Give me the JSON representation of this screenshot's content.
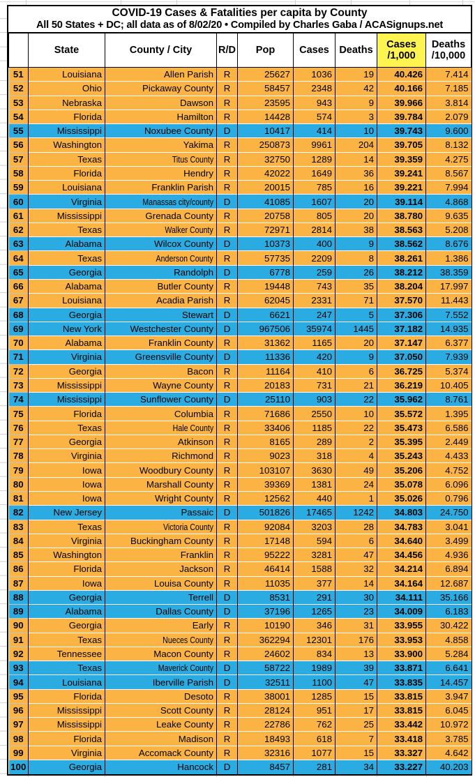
{
  "colors": {
    "republican_row": "#FBB444",
    "democratic_row": "#2AACE2",
    "highlight_header": "#FDF351",
    "grid_black": "#000000",
    "grid_gray": "#CFCFCF"
  },
  "chart_data": {
    "type": "table",
    "title": "COVID-19 Cases & Fatalities per capita by County",
    "subtitle": "All 50 States + DC; all data as of 8/02/20  • Compiled by Charles Gaba / ACASignups.net",
    "row_color_legend": {
      "R": "republican-orange",
      "D": "democratic-blue"
    },
    "columns": [
      {
        "key": "rank",
        "label": ""
      },
      {
        "key": "state",
        "label": "State"
      },
      {
        "key": "county",
        "label": "County / City"
      },
      {
        "key": "party",
        "label": "R/D"
      },
      {
        "key": "pop",
        "label": "Pop"
      },
      {
        "key": "cases",
        "label": "Cases"
      },
      {
        "key": "deaths",
        "label": "Deaths"
      },
      {
        "key": "cases_per_1000",
        "label": "Cases",
        "label2": "/1,000",
        "highlighted": true
      },
      {
        "key": "deaths_per_10000",
        "label": "Deaths",
        "label2": "/10,000"
      }
    ],
    "rows": [
      [
        51,
        "Louisiana",
        "Allen Parish",
        "R",
        25627,
        1036,
        19,
        "40.426",
        "7.414"
      ],
      [
        52,
        "Ohio",
        "Pickaway County",
        "R",
        58457,
        2348,
        42,
        "40.166",
        "7.185"
      ],
      [
        53,
        "Nebraska",
        "Dawson",
        "R",
        23595,
        943,
        9,
        "39.966",
        "3.814"
      ],
      [
        54,
        "Florida",
        "Hamilton",
        "R",
        14428,
        574,
        3,
        "39.784",
        "2.079"
      ],
      [
        55,
        "Mississippi",
        "Noxubee County",
        "D",
        10417,
        414,
        10,
        "39.743",
        "9.600"
      ],
      [
        56,
        "Washington",
        "Yakima",
        "R",
        250873,
        9961,
        204,
        "39.705",
        "8.132"
      ],
      [
        57,
        "Texas",
        "Titus County",
        "R",
        32750,
        1289,
        14,
        "39.359",
        "4.275"
      ],
      [
        58,
        "Florida",
        "Hendry",
        "R",
        42022,
        1649,
        36,
        "39.241",
        "8.567"
      ],
      [
        59,
        "Louisiana",
        "Franklin Parish",
        "R",
        20015,
        785,
        16,
        "39.221",
        "7.994"
      ],
      [
        60,
        "Virginia",
        "Manassas city/county",
        "D",
        41085,
        1607,
        20,
        "39.114",
        "4.868"
      ],
      [
        61,
        "Mississippi",
        "Grenada County",
        "R",
        20758,
        805,
        20,
        "38.780",
        "9.635"
      ],
      [
        62,
        "Texas",
        "Walker County",
        "R",
        72971,
        2814,
        38,
        "38.563",
        "5.208"
      ],
      [
        63,
        "Alabama",
        "Wilcox County",
        "D",
        10373,
        400,
        9,
        "38.562",
        "8.676"
      ],
      [
        64,
        "Texas",
        "Anderson County",
        "R",
        57735,
        2209,
        8,
        "38.261",
        "1.386"
      ],
      [
        65,
        "Georgia",
        "Randolph",
        "D",
        6778,
        259,
        26,
        "38.212",
        "38.359"
      ],
      [
        66,
        "Alabama",
        "Butler County",
        "R",
        19448,
        743,
        35,
        "38.204",
        "17.997"
      ],
      [
        67,
        "Louisiana",
        "Acadia Parish",
        "R",
        62045,
        2331,
        71,
        "37.570",
        "11.443"
      ],
      [
        68,
        "Georgia",
        "Stewart",
        "D",
        6621,
        247,
        5,
        "37.306",
        "7.552"
      ],
      [
        69,
        "New York",
        "Westchester County",
        "D",
        967506,
        35974,
        1445,
        "37.182",
        "14.935"
      ],
      [
        70,
        "Alabama",
        "Franklin County",
        "R",
        31362,
        1165,
        20,
        "37.147",
        "6.377"
      ],
      [
        71,
        "Virginia",
        "Greensville County",
        "D",
        11336,
        420,
        9,
        "37.050",
        "7.939"
      ],
      [
        72,
        "Georgia",
        "Bacon",
        "R",
        11164,
        410,
        6,
        "36.725",
        "5.374"
      ],
      [
        73,
        "Mississippi",
        "Wayne County",
        "R",
        20183,
        731,
        21,
        "36.219",
        "10.405"
      ],
      [
        74,
        "Mississippi",
        "Sunflower County",
        "D",
        25110,
        903,
        22,
        "35.962",
        "8.761"
      ],
      [
        75,
        "Florida",
        "Columbia",
        "R",
        71686,
        2550,
        10,
        "35.572",
        "1.395"
      ],
      [
        76,
        "Texas",
        "Hale County",
        "R",
        33406,
        1185,
        22,
        "35.473",
        "6.586"
      ],
      [
        77,
        "Georgia",
        "Atkinson",
        "R",
        8165,
        289,
        2,
        "35.395",
        "2.449"
      ],
      [
        78,
        "Virginia",
        "Richmond",
        "R",
        9023,
        318,
        4,
        "35.243",
        "4.433"
      ],
      [
        79,
        "Iowa",
        "Woodbury County",
        "R",
        103107,
        3630,
        49,
        "35.206",
        "4.752"
      ],
      [
        80,
        "Iowa",
        "Marshall County",
        "R",
        39369,
        1381,
        24,
        "35.078",
        "6.096"
      ],
      [
        81,
        "Iowa",
        "Wright County",
        "R",
        12562,
        440,
        1,
        "35.026",
        "0.796"
      ],
      [
        82,
        "New Jersey",
        "Passaic",
        "D",
        501826,
        17465,
        1242,
        "34.803",
        "24.750"
      ],
      [
        83,
        "Texas",
        "Victoria County",
        "R",
        92084,
        3203,
        28,
        "34.783",
        "3.041"
      ],
      [
        84,
        "Virginia",
        "Buckingham County",
        "R",
        17148,
        594,
        6,
        "34.640",
        "3.499"
      ],
      [
        85,
        "Washington",
        "Franklin",
        "R",
        95222,
        3281,
        47,
        "34.456",
        "4.936"
      ],
      [
        86,
        "Florida",
        "Jackson",
        "R",
        46414,
        1588,
        32,
        "34.214",
        "6.894"
      ],
      [
        87,
        "Iowa",
        "Louisa County",
        "R",
        11035,
        377,
        14,
        "34.164",
        "12.687"
      ],
      [
        88,
        "Georgia",
        "Terrell",
        "D",
        8531,
        291,
        30,
        "34.111",
        "35.166"
      ],
      [
        89,
        "Alabama",
        "Dallas County",
        "D",
        37196,
        1265,
        23,
        "34.009",
        "6.183"
      ],
      [
        90,
        "Georgia",
        "Early",
        "R",
        10190,
        346,
        31,
        "33.955",
        "30.422"
      ],
      [
        91,
        "Texas",
        "Nueces County",
        "R",
        362294,
        12301,
        176,
        "33.953",
        "4.858"
      ],
      [
        92,
        "Tennessee",
        "Macon County",
        "R",
        24602,
        834,
        13,
        "33.900",
        "5.284"
      ],
      [
        93,
        "Texas",
        "Maverick County",
        "D",
        58722,
        1989,
        39,
        "33.871",
        "6.641"
      ],
      [
        94,
        "Louisiana",
        "Iberville Parish",
        "D",
        32511,
        1100,
        47,
        "33.835",
        "14.457"
      ],
      [
        95,
        "Florida",
        "Desoto",
        "R",
        38001,
        1285,
        15,
        "33.815",
        "3.947"
      ],
      [
        96,
        "Mississippi",
        "Scott County",
        "R",
        28124,
        951,
        17,
        "33.815",
        "6.045"
      ],
      [
        97,
        "Mississippi",
        "Leake County",
        "R",
        22786,
        762,
        25,
        "33.442",
        "10.972"
      ],
      [
        98,
        "Florida",
        "Madison",
        "R",
        18493,
        618,
        7,
        "33.418",
        "3.785"
      ],
      [
        99,
        "Virginia",
        "Accomack County",
        "R",
        32316,
        1077,
        15,
        "33.327",
        "4.642"
      ],
      [
        100,
        "Georgia",
        "Hancock",
        "D",
        8457,
        281,
        34,
        "33.227",
        "40.203"
      ]
    ]
  }
}
